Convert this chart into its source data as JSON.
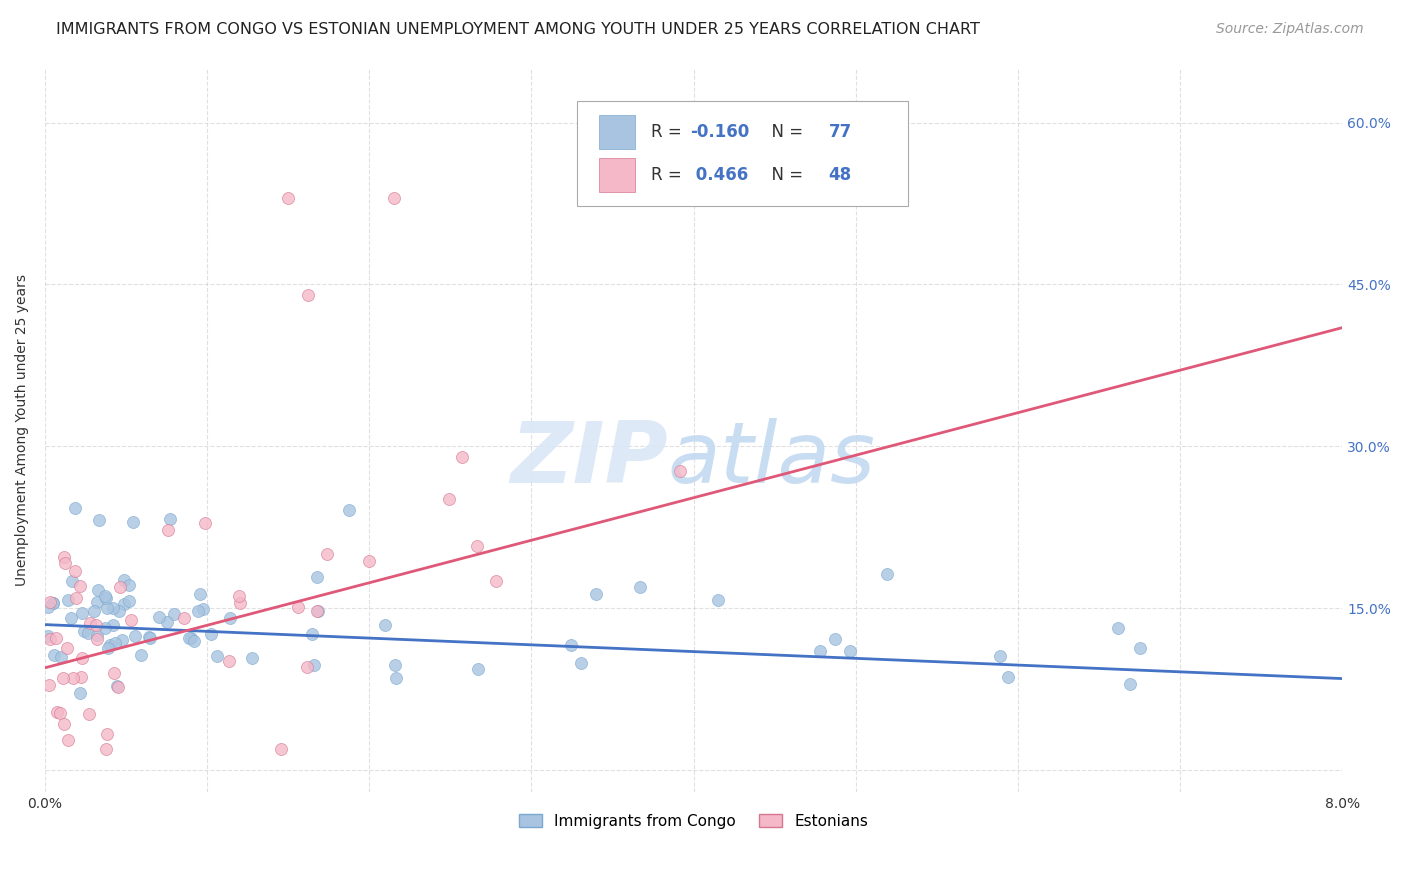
{
  "title": "IMMIGRANTS FROM CONGO VS ESTONIAN UNEMPLOYMENT AMONG YOUTH UNDER 25 YEARS CORRELATION CHART",
  "source": "Source: ZipAtlas.com",
  "ylabel": "Unemployment Among Youth under 25 years",
  "xlim": [
    0.0,
    0.08
  ],
  "ylim": [
    -0.02,
    0.65
  ],
  "ytick_positions": [
    0.0,
    0.15,
    0.3,
    0.45,
    0.6
  ],
  "ytick_labels": [
    "",
    "15.0%",
    "30.0%",
    "45.0%",
    "60.0%"
  ],
  "xtick_positions": [
    0.0,
    0.01,
    0.02,
    0.03,
    0.04,
    0.05,
    0.06,
    0.07,
    0.08
  ],
  "legend_entries": [
    {
      "label": "Immigrants from Congo",
      "R": "-0.160",
      "N": "77",
      "patch_color": "#a8c4e0",
      "edge_color": "#7aa8d0",
      "line_color": "#4472c4"
    },
    {
      "label": "Estonians",
      "R": "0.466",
      "N": "48",
      "patch_color": "#f4b8c8",
      "edge_color": "#d47890",
      "line_color": "#e05878"
    }
  ],
  "r_text_color": "#4472c4",
  "n_text_color": "#4472c4",
  "watermark_zip_color": "#d8e6f5",
  "watermark_atlas_color": "#c0d8f0",
  "background_color": "#ffffff",
  "grid_color": "#cccccc",
  "title_fontsize": 11.5,
  "source_fontsize": 10,
  "ylabel_fontsize": 10,
  "tick_fontsize": 10,
  "legend_fontsize": 11,
  "congo_line_y0": 0.135,
  "congo_line_y1": 0.085,
  "estonian_line_y0": 0.095,
  "estonian_line_y1": 0.41
}
